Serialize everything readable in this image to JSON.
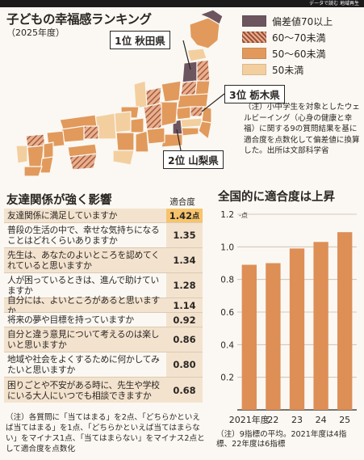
{
  "header": {
    "strip_text": "データで読む 地域再生"
  },
  "title": "子どもの幸福感ランキング",
  "subtitle": "（2025年度）",
  "legend": [
    {
      "label": "偏差値70以上",
      "color": "#6d5560",
      "pattern": "solid"
    },
    {
      "label": "60〜70未満",
      "color": "#b76b50",
      "pattern": "hatch"
    },
    {
      "label": "50〜60未満",
      "color": "#e19a5c",
      "pattern": "solid"
    },
    {
      "label": "50未満",
      "color": "#f3cf9f",
      "pattern": "solid"
    }
  ],
  "callouts": [
    {
      "rank": "1位",
      "name": "秋田県"
    },
    {
      "rank": "3位",
      "name": "栃木県"
    },
    {
      "rank": "2位",
      "name": "山梨県"
    }
  ],
  "note_top": "（注）小中学生を対象としたウェルビーイング（心身の健康と幸福）に関する9の質問結果を基に適合度を点数化して偏差値に換算した。出所は文部科学省",
  "left_heading": "友達関係が強く影響",
  "score_heading": "適合度",
  "score_unit": "点",
  "questions": [
    {
      "text": "友達関係に満足していますか",
      "score": "1.42"
    },
    {
      "text": "普段の生活の中で、幸せな気持ちになることはどれくらいありますか",
      "score": "1.35"
    },
    {
      "text": "先生は、あなたのよいところを認めてくれていると思いますか",
      "score": "1.34"
    },
    {
      "text": "人が困っているときは、進んで助けていますか",
      "score": "1.28"
    },
    {
      "text": "自分には、よいところがあると思いますか",
      "score": "1.14"
    },
    {
      "text": "将来の夢や目標を持っていますか",
      "score": "0.92"
    },
    {
      "text": "自分と違う意見について考えるのは楽しいと思いますか",
      "score": "0.86"
    },
    {
      "text": "地域や社会をよくするために何かしてみたいと思いますか",
      "score": "0.80"
    },
    {
      "text": "困りごとや不安がある時に、先生や学校にいる大人にいつでも相談できますか",
      "score": "0.68"
    }
  ],
  "note_bottom": "（注）各質問に「当てはまる」を2点、「どちらかといえば当てはまる」を1点、「どちらかといえば当てはまらない」をマイナス1点、「当てはまらない」をマイナス2点として適合度を点数化",
  "right_heading": "全国的に適合度は上昇",
  "note_right": "（注）9指標の平均。2021年度は4指標、22年度は6指標",
  "chart_data": {
    "type": "bar",
    "title": "全国的に適合度は上昇",
    "categories": [
      "2021年度",
      "22",
      "23",
      "24",
      "25"
    ],
    "values": [
      0.89,
      0.9,
      0.99,
      1.03,
      1.09
    ],
    "ylim": [
      0,
      1.2
    ],
    "yticks": [
      0,
      0.2,
      0.4,
      0.6,
      0.8,
      1.0,
      1.2
    ],
    "ytick_labels": [
      "",
      "0.2",
      "0.4",
      "0.6",
      "0.8",
      "1.0",
      "1.2"
    ],
    "ytick_unit": "点",
    "bar_color": "#dd8f56",
    "grid": true
  }
}
